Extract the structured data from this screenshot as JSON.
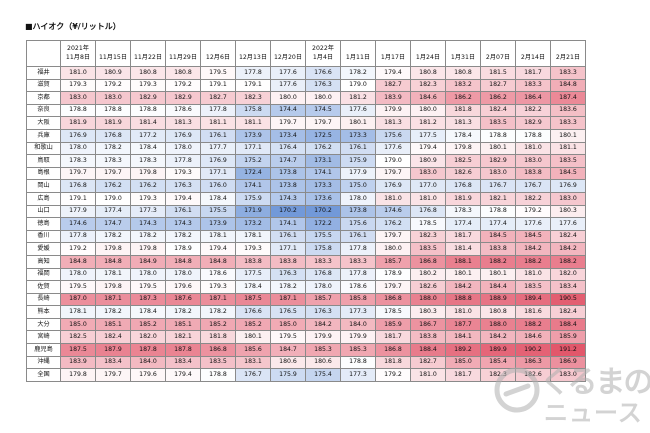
{
  "title": "■ハイオク（¥/リットル）",
  "columns": [
    {
      "year": "2021年",
      "date": "11月8日"
    },
    {
      "year": "",
      "date": "11月15日"
    },
    {
      "year": "",
      "date": "11月22日"
    },
    {
      "year": "",
      "date": "11月29日"
    },
    {
      "year": "",
      "date": "12月6日"
    },
    {
      "year": "",
      "date": "12月13日"
    },
    {
      "year": "",
      "date": "12月20日"
    },
    {
      "year": "2022年",
      "date": "1月4日"
    },
    {
      "year": "",
      "date": "1月11日"
    },
    {
      "year": "",
      "date": "1月17日"
    },
    {
      "year": "",
      "date": "1月24日"
    },
    {
      "year": "",
      "date": "1月31日"
    },
    {
      "year": "",
      "date": "2月07日"
    },
    {
      "year": "",
      "date": "2月14日"
    },
    {
      "year": "",
      "date": "2月21日"
    }
  ],
  "rows": [
    {
      "pref": "福井",
      "values": [
        "181.0",
        "180.9",
        "180.8",
        "180.8",
        "179.5",
        "177.8",
        "177.6",
        "176.6",
        "178.2",
        "179.4",
        "180.8",
        "180.8",
        "181.5",
        "181.7",
        "183.3"
      ]
    },
    {
      "pref": "滋賀",
      "values": [
        "179.3",
        "179.2",
        "179.3",
        "179.2",
        "179.1",
        "179.1",
        "177.6",
        "176.3",
        "179.0",
        "182.7",
        "182.3",
        "183.2",
        "182.7",
        "183.3",
        "184.8"
      ]
    },
    {
      "pref": "京都",
      "values": [
        "183.0",
        "183.0",
        "182.9",
        "182.9",
        "182.7",
        "182.3",
        "180.0",
        "180.0",
        "181.2",
        "183.9",
        "184.6",
        "186.2",
        "186.2",
        "186.4",
        "187.4"
      ]
    },
    {
      "pref": "奈良",
      "values": [
        "178.8",
        "178.8",
        "178.8",
        "178.6",
        "177.8",
        "175.8",
        "174.4",
        "174.5",
        "177.6",
        "179.9",
        "180.0",
        "181.8",
        "182.4",
        "182.2",
        "183.6"
      ]
    },
    {
      "pref": "大阪",
      "values": [
        "181.9",
        "181.9",
        "181.4",
        "181.3",
        "181.1",
        "181.1",
        "179.7",
        "179.7",
        "180.1",
        "181.3",
        "181.2",
        "181.3",
        "183.5",
        "182.9",
        "183.3"
      ]
    },
    {
      "pref": "兵庫",
      "values": [
        "176.9",
        "176.8",
        "177.2",
        "176.9",
        "176.1",
        "173.9",
        "173.4",
        "172.5",
        "173.3",
        "175.6",
        "177.5",
        "178.4",
        "178.8",
        "178.8",
        "180.1"
      ]
    },
    {
      "pref": "和歌山",
      "values": [
        "178.0",
        "178.2",
        "178.4",
        "178.0",
        "177.7",
        "177.1",
        "176.4",
        "176.2",
        "176.1",
        "177.6",
        "179.4",
        "179.8",
        "180.1",
        "181.0",
        "181.1"
      ]
    },
    {
      "pref": "鳥取",
      "values": [
        "178.3",
        "178.3",
        "178.3",
        "177.8",
        "176.9",
        "175.2",
        "174.7",
        "173.1",
        "175.9",
        "179.0",
        "180.9",
        "182.5",
        "182.9",
        "183.0",
        "183.5"
      ]
    },
    {
      "pref": "島根",
      "values": [
        "179.7",
        "179.7",
        "179.8",
        "179.3",
        "177.1",
        "172.4",
        "173.8",
        "174.1",
        "177.9",
        "179.7",
        "183.0",
        "182.6",
        "183.0",
        "183.8",
        "184.5"
      ]
    },
    {
      "pref": "岡山",
      "values": [
        "176.8",
        "176.2",
        "176.2",
        "176.3",
        "176.0",
        "174.1",
        "173.8",
        "173.3",
        "175.0",
        "176.9",
        "177.0",
        "176.8",
        "176.7",
        "176.7",
        "176.9"
      ]
    },
    {
      "pref": "広島",
      "values": [
        "179.1",
        "179.0",
        "179.3",
        "179.4",
        "178.4",
        "175.9",
        "174.3",
        "173.6",
        "178.0",
        "181.0",
        "181.0",
        "181.9",
        "182.1",
        "182.2",
        "183.0"
      ]
    },
    {
      "pref": "山口",
      "values": [
        "177.9",
        "177.4",
        "177.3",
        "176.1",
        "175.5",
        "171.9",
        "170.2",
        "170.2",
        "173.8",
        "174.6",
        "176.8",
        "178.3",
        "178.8",
        "179.2",
        "180.3"
      ]
    },
    {
      "pref": "徳島",
      "values": [
        "174.6",
        "174.7",
        "174.3",
        "174.3",
        "173.9",
        "173.2",
        "174.1",
        "172.2",
        "175.6",
        "176.2",
        "178.5",
        "177.4",
        "177.4",
        "177.6",
        "177.6"
      ]
    },
    {
      "pref": "香川",
      "values": [
        "177.8",
        "178.2",
        "178.2",
        "178.2",
        "178.1",
        "178.1",
        "176.1",
        "175.5",
        "176.1",
        "179.7",
        "182.3",
        "181.7",
        "184.5",
        "184.5",
        "182.4"
      ]
    },
    {
      "pref": "愛媛",
      "values": [
        "179.2",
        "179.8",
        "179.8",
        "178.9",
        "179.4",
        "179.3",
        "177.1",
        "175.8",
        "177.8",
        "180.0",
        "183.5",
        "181.4",
        "183.8",
        "184.2",
        "184.2"
      ]
    },
    {
      "pref": "高知",
      "values": [
        "184.8",
        "184.8",
        "184.9",
        "184.8",
        "184.8",
        "183.8",
        "183.8",
        "183.3",
        "183.3",
        "185.7",
        "186.8",
        "188.1",
        "188.2",
        "188.2",
        "188.2"
      ]
    },
    {
      "pref": "福岡",
      "values": [
        "178.0",
        "178.1",
        "178.0",
        "178.0",
        "178.6",
        "177.5",
        "176.3",
        "176.8",
        "177.8",
        "178.9",
        "180.2",
        "180.1",
        "180.1",
        "181.0",
        "182.0"
      ]
    },
    {
      "pref": "佐賀",
      "values": [
        "179.5",
        "179.8",
        "179.5",
        "179.6",
        "179.3",
        "178.4",
        "178.2",
        "178.0",
        "178.6",
        "179.7",
        "182.6",
        "184.2",
        "184.4",
        "183.5",
        "183.4"
      ]
    },
    {
      "pref": "長崎",
      "values": [
        "187.0",
        "187.1",
        "187.3",
        "187.6",
        "187.1",
        "187.5",
        "187.1",
        "185.7",
        "185.8",
        "186.8",
        "188.0",
        "188.8",
        "188.9",
        "189.4",
        "190.5"
      ]
    },
    {
      "pref": "熊本",
      "values": [
        "178.1",
        "178.2",
        "178.4",
        "178.2",
        "178.2",
        "176.6",
        "176.5",
        "176.3",
        "177.3",
        "178.5",
        "180.3",
        "181.0",
        "180.8",
        "181.6",
        "182.4"
      ]
    },
    {
      "pref": "大分",
      "values": [
        "185.0",
        "185.1",
        "185.2",
        "185.1",
        "185.2",
        "185.2",
        "185.0",
        "184.2",
        "184.0",
        "185.9",
        "186.7",
        "187.7",
        "188.0",
        "188.2",
        "188.4"
      ]
    },
    {
      "pref": "宮崎",
      "values": [
        "182.5",
        "182.4",
        "182.0",
        "182.1",
        "181.8",
        "180.1",
        "179.5",
        "179.9",
        "179.9",
        "181.7",
        "183.8",
        "184.1",
        "184.2",
        "184.6",
        "185.9"
      ]
    },
    {
      "pref": "鹿児島",
      "values": [
        "187.5",
        "187.9",
        "187.8",
        "187.8",
        "186.8",
        "185.6",
        "184.7",
        "185.3",
        "185.3",
        "186.8",
        "188.4",
        "189.2",
        "189.9",
        "190.2",
        "191.2"
      ]
    },
    {
      "pref": "沖縄",
      "values": [
        "183.9",
        "183.4",
        "184.0",
        "183.4",
        "183.5",
        "183.1",
        "180.6",
        "180.6",
        "178.8",
        "181.8",
        "182.7",
        "185.0",
        "185.4",
        "186.3",
        "186.9"
      ]
    },
    {
      "pref": "全国",
      "values": [
        "179.8",
        "179.7",
        "179.6",
        "179.4",
        "178.8",
        "176.7",
        "175.9",
        "175.4",
        "177.3",
        "179.2",
        "181.0",
        "181.7",
        "182.3",
        "182.6",
        "183.0"
      ]
    }
  ],
  "color_scale": {
    "low": "#6f97d8",
    "mid": "#ffffff",
    "high": "#e2576b",
    "low_value": 170.0,
    "mid_value": 179.0,
    "high_value": 191.0
  },
  "watermark": {
    "brand": "くるまの",
    "sub": "ニュース",
    "mark_icon": "car-news-logo-icon"
  }
}
